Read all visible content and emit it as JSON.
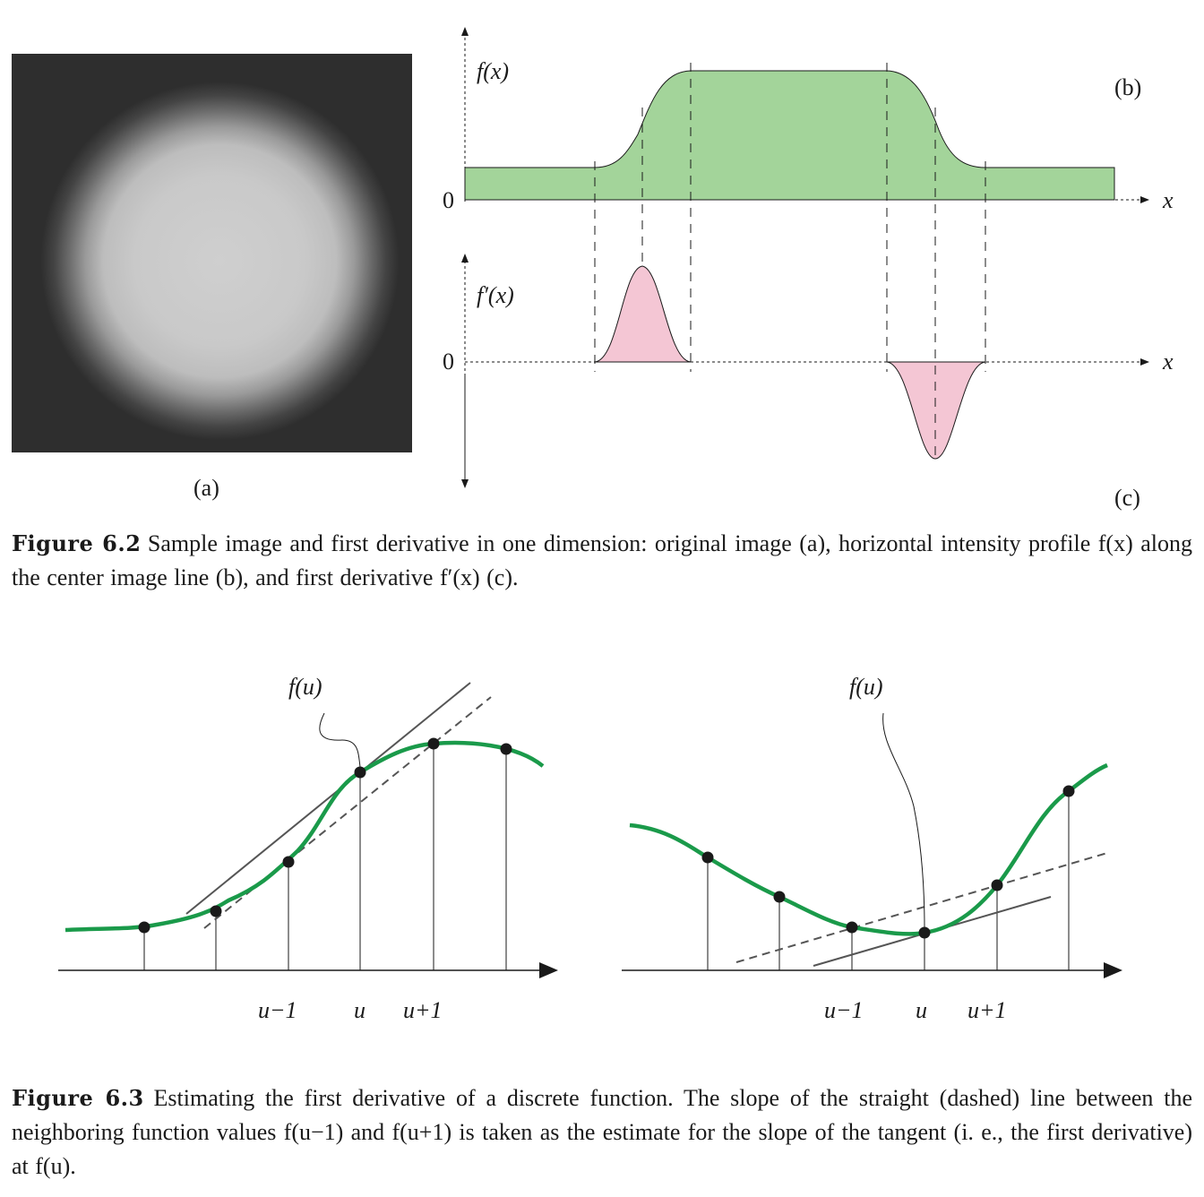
{
  "figure_6_2": {
    "panel_a_label": "(a)",
    "panel_b_label": "(b)",
    "panel_c_label": "(c)",
    "plot_b": {
      "ylabel": "f(x)",
      "xlabel": "x",
      "zero_label": "0"
    },
    "plot_c": {
      "ylabel": "f′(x)",
      "xlabel": "x",
      "zero_label": "0"
    },
    "colors": {
      "profile_fill": "#a3d49a",
      "derivative_fill": "#f4c6d4",
      "image_bg": "#2e2e2e",
      "disc": "#cccccc"
    },
    "caption_bold": "Figure 6.2",
    "caption_text": "Sample image and first derivative in one dimension: original image (a), horizontal intensity profile f(x) along the center image line (b), and first derivative f′(x) (c)."
  },
  "figure_6_3": {
    "left": {
      "func_label": "f(u)",
      "tick_labels": [
        "u−1",
        "u",
        "u+1"
      ]
    },
    "right": {
      "func_label": "f(u)",
      "tick_labels": [
        "u−1",
        "u",
        "u+1"
      ]
    },
    "colors": {
      "curve": "#1a9a4a",
      "tangent": "#555555",
      "secant": "#555555"
    },
    "caption_bold": "Figure 6.3",
    "caption_text": "Estimating the first derivative of a discrete function. The slope of the straight (dashed) line between the neighboring function values f(u−1) and f(u+1) is taken as the estimate for the slope of the tangent (i. e., the first derivative) at f(u)."
  }
}
